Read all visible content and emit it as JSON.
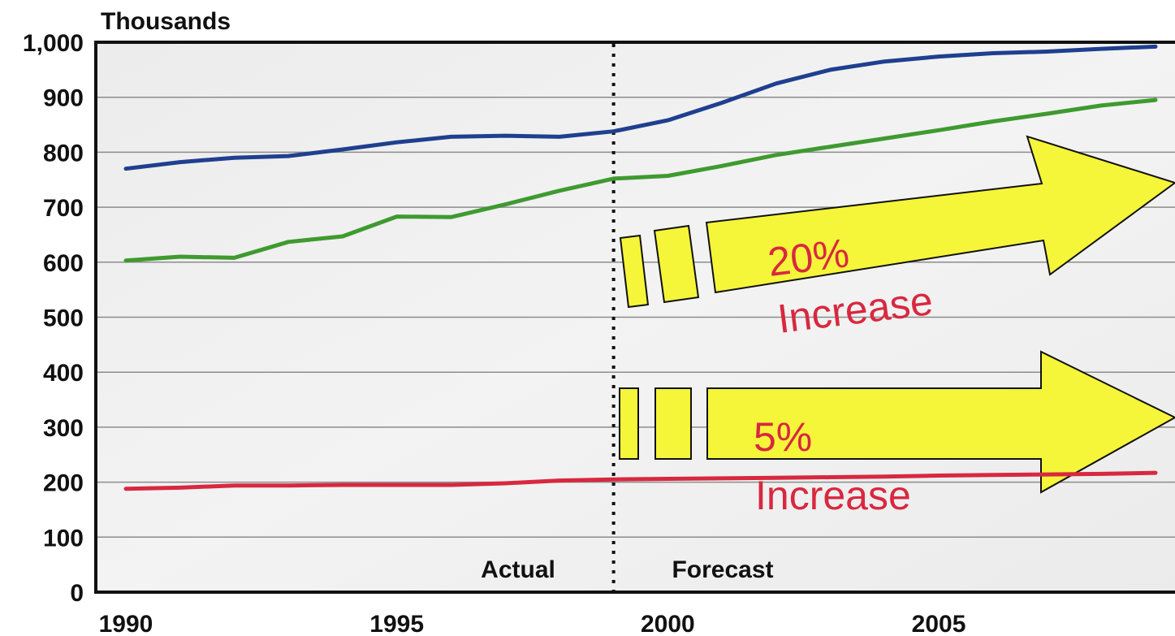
{
  "chart_data": {
    "type": "line",
    "title": "",
    "xlabel": "",
    "ylabel": "Thousands",
    "xlim": [
      1990,
      2009
    ],
    "ylim": [
      0,
      1000
    ],
    "x_ticks": [
      1990,
      1995,
      2000,
      2005
    ],
    "y_ticks": [
      {
        "value": 0,
        "label": "0"
      },
      {
        "value": 100,
        "label": "100"
      },
      {
        "value": 200,
        "label": "200"
      },
      {
        "value": 300,
        "label": "300"
      },
      {
        "value": 400,
        "label": "400"
      },
      {
        "value": 500,
        "label": "500"
      },
      {
        "value": 600,
        "label": "600"
      },
      {
        "value": 700,
        "label": "700"
      },
      {
        "value": 800,
        "label": "800"
      },
      {
        "value": 900,
        "label": "900"
      },
      {
        "value": 1000,
        "label": "1,000"
      }
    ],
    "grid": true,
    "x": [
      1990,
      1991,
      1992,
      1993,
      1994,
      1995,
      1996,
      1997,
      1998,
      1999,
      2000,
      2001,
      2002,
      2003,
      2004,
      2005,
      2006,
      2007,
      2008,
      2009
    ],
    "series": [
      {
        "color": "#1f3f8f",
        "values": [
          770,
          782,
          790,
          793,
          805,
          818,
          828,
          830,
          828,
          838,
          858,
          890,
          925,
          950,
          965,
          974,
          980,
          983,
          988,
          992
        ]
      },
      {
        "color": "#3f9a2f",
        "values": [
          603,
          610,
          608,
          637,
          647,
          683,
          682,
          705,
          730,
          752,
          757,
          775,
          795,
          810,
          825,
          840,
          856,
          870,
          885,
          895
        ]
      },
      {
        "color": "#d8283f",
        "values": [
          188,
          190,
          194,
          194,
          195,
          195,
          195,
          198,
          203,
          205,
          206,
          207,
          208,
          209,
          210,
          212,
          213,
          214,
          215,
          217
        ]
      }
    ],
    "divider": {
      "x": 1999,
      "style": "dotted"
    },
    "region_labels": {
      "actual": "Actual",
      "forecast": "Forecast"
    },
    "annotations": [
      {
        "id": "upper",
        "percent": "20%",
        "text": "Increase",
        "color": "#d8283f",
        "arrow_color": "#f5f53a"
      },
      {
        "id": "lower",
        "percent": "5%",
        "text": "Increase",
        "color": "#d8283f",
        "arrow_color": "#f5f53a"
      }
    ]
  }
}
